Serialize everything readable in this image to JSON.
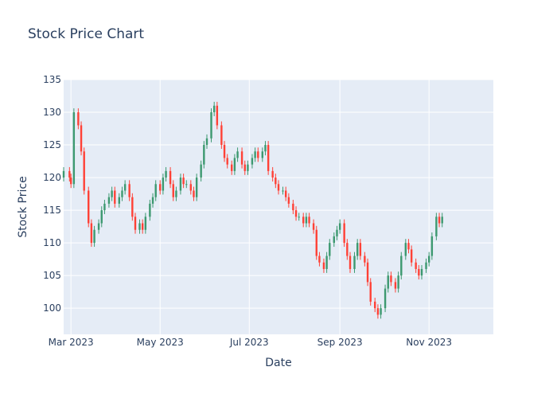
{
  "chart_data": {
    "type": "candlestick",
    "title": "Stock Price Chart",
    "xlabel": "Date",
    "ylabel": "Stock Price",
    "xlim": [
      "2023-02-24",
      "2023-12-15"
    ],
    "ylim": [
      96,
      135
    ],
    "x_ticks": [
      "Mar 2023",
      "May 2023",
      "Jul 2023",
      "Sep 2023",
      "Nov 2023"
    ],
    "x_tick_dates": [
      "2023-03-01",
      "2023-05-01",
      "2023-07-01",
      "2023-09-01",
      "2023-11-01"
    ],
    "y_ticks": [
      100,
      105,
      110,
      115,
      120,
      125,
      130,
      135
    ],
    "grid": true,
    "legend": "none",
    "colors": {
      "increasing": "#3d9970",
      "decreasing": "#ff4136",
      "plot_bg": "#e5ecf6",
      "grid": "#ffffff",
      "text": "#2a3f5f"
    },
    "approx_daily_close": [
      [
        "2023-02-24",
        121
      ],
      [
        "2023-02-28",
        120
      ],
      [
        "2023-03-01",
        119
      ],
      [
        "2023-03-03",
        130
      ],
      [
        "2023-03-06",
        128
      ],
      [
        "2023-03-08",
        124
      ],
      [
        "2023-03-10",
        118
      ],
      [
        "2023-03-13",
        113
      ],
      [
        "2023-03-15",
        110
      ],
      [
        "2023-03-17",
        112
      ],
      [
        "2023-03-20",
        113
      ],
      [
        "2023-03-22",
        115
      ],
      [
        "2023-03-24",
        116
      ],
      [
        "2023-03-27",
        117
      ],
      [
        "2023-03-29",
        118
      ],
      [
        "2023-03-31",
        116
      ],
      [
        "2023-04-03",
        117
      ],
      [
        "2023-04-05",
        118
      ],
      [
        "2023-04-07",
        119
      ],
      [
        "2023-04-10",
        117
      ],
      [
        "2023-04-12",
        114
      ],
      [
        "2023-04-14",
        112
      ],
      [
        "2023-04-17",
        113
      ],
      [
        "2023-04-19",
        112
      ],
      [
        "2023-04-21",
        114
      ],
      [
        "2023-04-24",
        116
      ],
      [
        "2023-04-26",
        117
      ],
      [
        "2023-04-28",
        119
      ],
      [
        "2023-05-01",
        118
      ],
      [
        "2023-05-03",
        120
      ],
      [
        "2023-05-05",
        121
      ],
      [
        "2023-05-08",
        119
      ],
      [
        "2023-05-10",
        117
      ],
      [
        "2023-05-12",
        118
      ],
      [
        "2023-05-15",
        120
      ],
      [
        "2023-05-17",
        119
      ],
      [
        "2023-05-19",
        119
      ],
      [
        "2023-05-22",
        118
      ],
      [
        "2023-05-24",
        117
      ],
      [
        "2023-05-26",
        120
      ],
      [
        "2023-05-29",
        122
      ],
      [
        "2023-05-31",
        125
      ],
      [
        "2023-06-02",
        126
      ],
      [
        "2023-06-05",
        130
      ],
      [
        "2023-06-07",
        131
      ],
      [
        "2023-06-09",
        128
      ],
      [
        "2023-06-12",
        125
      ],
      [
        "2023-06-14",
        123
      ],
      [
        "2023-06-16",
        122
      ],
      [
        "2023-06-19",
        121
      ],
      [
        "2023-06-21",
        123
      ],
      [
        "2023-06-23",
        124
      ],
      [
        "2023-06-26",
        122
      ],
      [
        "2023-06-28",
        121
      ],
      [
        "2023-06-30",
        122
      ],
      [
        "2023-07-03",
        123
      ],
      [
        "2023-07-05",
        124
      ],
      [
        "2023-07-07",
        123
      ],
      [
        "2023-07-10",
        124
      ],
      [
        "2023-07-12",
        125
      ],
      [
        "2023-07-14",
        121
      ],
      [
        "2023-07-17",
        120
      ],
      [
        "2023-07-19",
        119
      ],
      [
        "2023-07-21",
        118
      ],
      [
        "2023-07-24",
        118
      ],
      [
        "2023-07-26",
        117
      ],
      [
        "2023-07-28",
        116
      ],
      [
        "2023-07-31",
        115
      ],
      [
        "2023-08-02",
        114
      ],
      [
        "2023-08-04",
        114
      ],
      [
        "2023-08-07",
        113
      ],
      [
        "2023-08-09",
        114
      ],
      [
        "2023-08-11",
        113
      ],
      [
        "2023-08-14",
        112
      ],
      [
        "2023-08-16",
        108
      ],
      [
        "2023-08-18",
        107
      ],
      [
        "2023-08-21",
        106
      ],
      [
        "2023-08-23",
        108
      ],
      [
        "2023-08-25",
        110
      ],
      [
        "2023-08-28",
        111
      ],
      [
        "2023-08-30",
        112
      ],
      [
        "2023-09-01",
        113
      ],
      [
        "2023-09-04",
        110
      ],
      [
        "2023-09-06",
        108
      ],
      [
        "2023-09-08",
        106
      ],
      [
        "2023-09-11",
        108
      ],
      [
        "2023-09-13",
        110
      ],
      [
        "2023-09-15",
        108
      ],
      [
        "2023-09-18",
        107
      ],
      [
        "2023-09-20",
        104
      ],
      [
        "2023-09-22",
        101
      ],
      [
        "2023-09-25",
        100
      ],
      [
        "2023-09-27",
        99
      ],
      [
        "2023-09-29",
        100
      ],
      [
        "2023-10-02",
        103
      ],
      [
        "2023-10-04",
        105
      ],
      [
        "2023-10-06",
        104
      ],
      [
        "2023-10-09",
        103
      ],
      [
        "2023-10-11",
        105
      ],
      [
        "2023-10-13",
        108
      ],
      [
        "2023-10-16",
        110
      ],
      [
        "2023-10-18",
        109
      ],
      [
        "2023-10-20",
        107
      ],
      [
        "2023-10-23",
        106
      ],
      [
        "2023-10-25",
        105
      ],
      [
        "2023-10-27",
        106
      ],
      [
        "2023-10-30",
        107
      ],
      [
        "2023-11-01",
        108
      ],
      [
        "2023-11-03",
        111
      ],
      [
        "2023-11-06",
        114
      ],
      [
        "2023-11-08",
        113
      ],
      [
        "2023-11-10",
        114
      ]
    ]
  }
}
